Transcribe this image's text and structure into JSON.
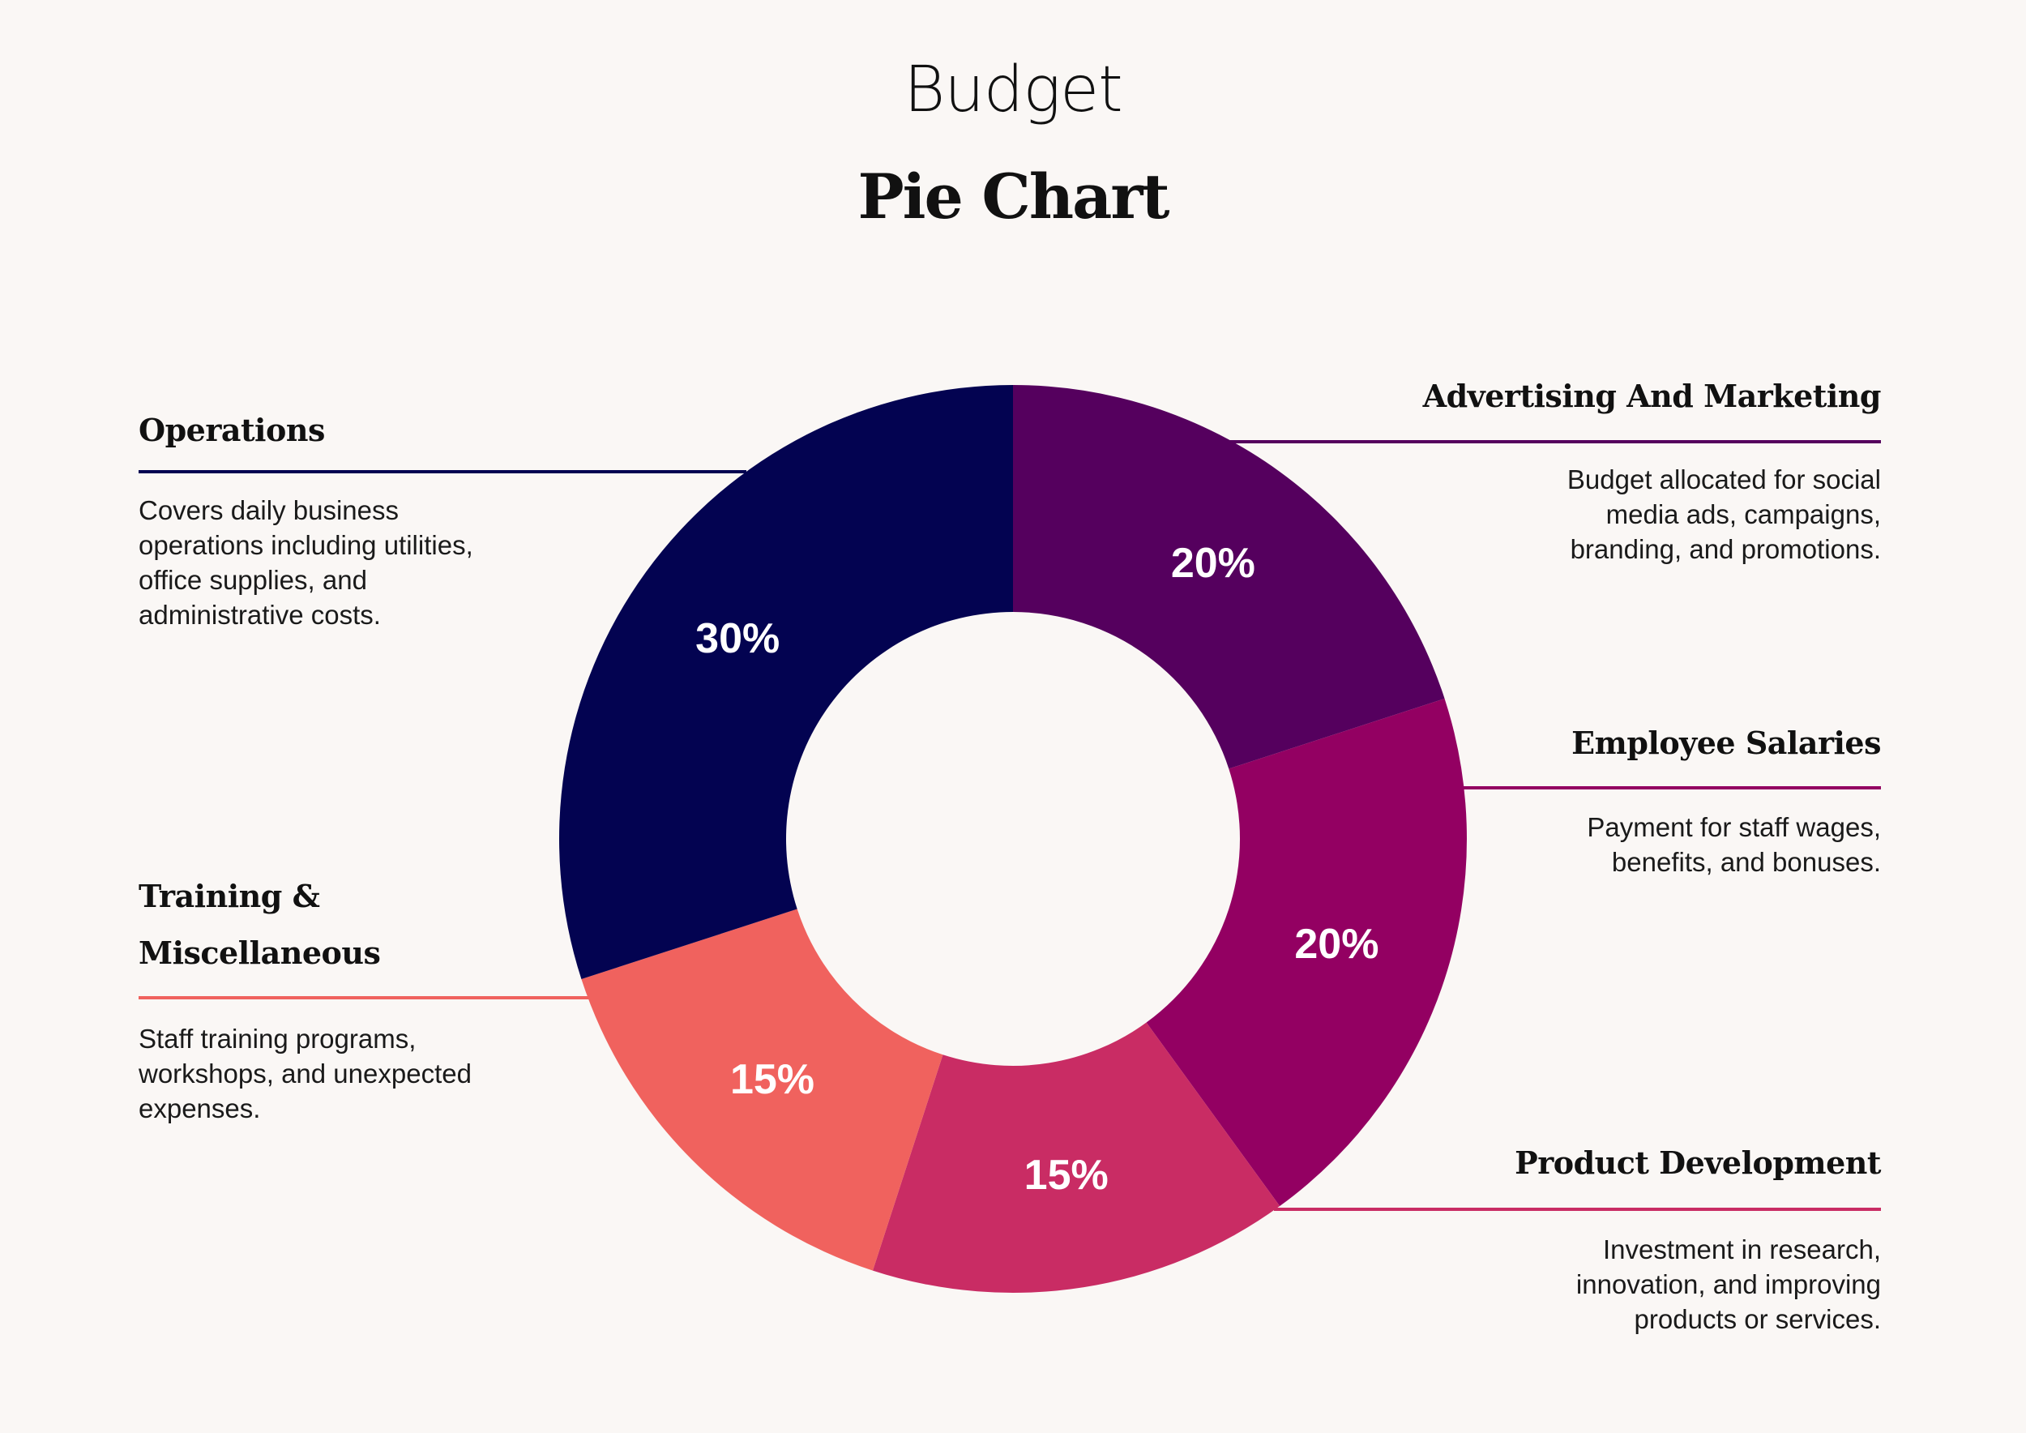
{
  "header": {
    "title": "Budget",
    "subtitle": "Pie Chart"
  },
  "colors": {
    "background": "#faf7f5",
    "operations": "#030351",
    "advertising": "#55005e",
    "salaries": "#930062",
    "product": "#c92c64",
    "training": "#f0625e"
  },
  "categories": {
    "operations": {
      "title": "Operations",
      "description": "Covers daily business\noperations including utilities,\noffice supplies, and\nadministrative costs."
    },
    "advertising": {
      "title": "Advertising And Marketing",
      "description": "Budget allocated for social\nmedia ads, campaigns,\nbranding, and promotions."
    },
    "salaries": {
      "title": "Employee Salaries",
      "description": "Payment for staff wages,\nbenefits, and bonuses."
    },
    "product": {
      "title": "Product Development",
      "description": "Investment in research,\ninnovation, and improving\nproducts or services."
    },
    "training": {
      "title": "Training &\nMiscellaneous",
      "description": "Staff training programs,\nworkshops, and unexpected\nexpenses."
    }
  },
  "chart_data": {
    "type": "pie",
    "style": "donut",
    "title": "Budget",
    "subtitle": "Pie Chart",
    "categories": [
      "Advertising And Marketing",
      "Employee Salaries",
      "Product Development",
      "Training & Miscellaneous",
      "Operations"
    ],
    "values": [
      20,
      20,
      15,
      15,
      30
    ],
    "labels": [
      "20%",
      "20%",
      "15%",
      "15%",
      "30%"
    ],
    "colors": [
      "#55005e",
      "#930062",
      "#c92c64",
      "#f0625e",
      "#030351"
    ],
    "start": "12 o'clock",
    "direction": "clockwise",
    "legend": "labels beside chart"
  }
}
